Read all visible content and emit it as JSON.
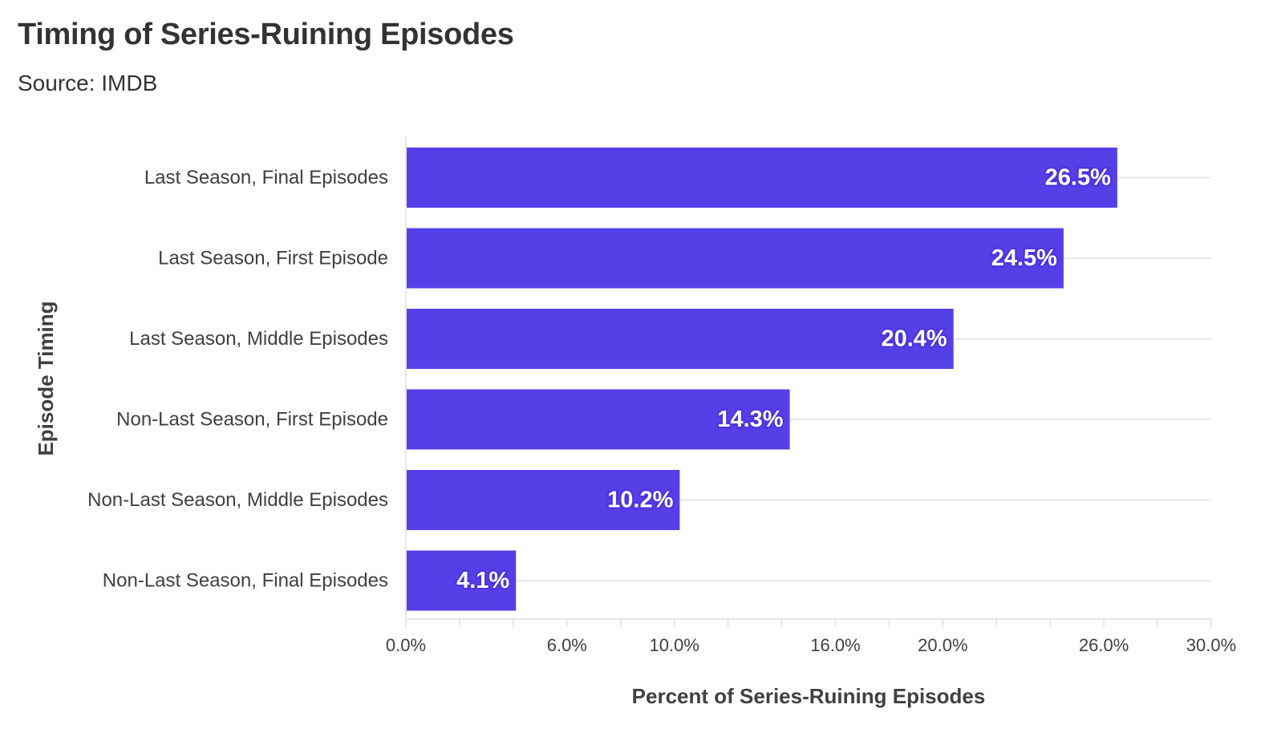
{
  "header": {
    "title": "Timing of Series-Ruining Episodes",
    "subtitle": "Source: IMDB"
  },
  "colors": {
    "bar": "#5540e8",
    "gridline": "#e6e6e6",
    "text": "#404040"
  },
  "chart_data": {
    "type": "bar",
    "orientation": "horizontal",
    "title": "Timing of Series-Ruining Episodes",
    "subtitle": "Source: IMDB",
    "xlabel": "Percent of Series-Ruining Episodes",
    "ylabel": "Episode Timing",
    "categories": [
      "Last Season, Final Episodes",
      "Last Season, First Episode",
      "Last Season, Middle Episodes",
      "Non-Last Season, First Episode",
      "Non-Last Season, Middle Episodes",
      "Non-Last Season, Final Episodes"
    ],
    "values": [
      26.5,
      24.5,
      20.4,
      14.3,
      10.2,
      4.1
    ],
    "data_labels": [
      "26.5%",
      "24.5%",
      "20.4%",
      "14.3%",
      "10.2%",
      "4.1%"
    ],
    "xlim": [
      0,
      30
    ],
    "x_ticks": [
      0,
      2,
      4,
      6,
      8,
      10,
      12,
      14,
      16,
      18,
      20,
      22,
      24,
      26,
      28,
      30
    ],
    "x_tick_labels": [
      {
        "value": 0,
        "label": "0.0%"
      },
      {
        "value": 6,
        "label": "6.0%"
      },
      {
        "value": 10,
        "label": "10.0%"
      },
      {
        "value": 16,
        "label": "16.0%"
      },
      {
        "value": 20,
        "label": "20.0%"
      },
      {
        "value": 26,
        "label": "26.0%"
      },
      {
        "value": 30,
        "label": "30.0%"
      }
    ],
    "grid": "horizontal",
    "legend": "none"
  }
}
